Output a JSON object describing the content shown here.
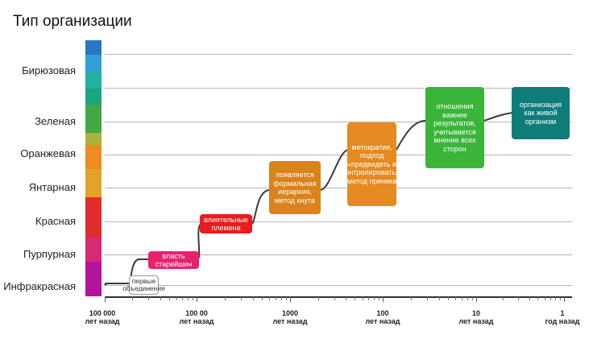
{
  "title": "Тип организации",
  "levels": [
    {
      "label": "Бирюзовая",
      "color": "#2aa7a0"
    },
    {
      "label": "Зеленая",
      "color": "#41a843"
    },
    {
      "label": "Оранжевая",
      "color": "#f08a22"
    },
    {
      "label": "Янтарная",
      "color": "#e5a229"
    },
    {
      "label": "Красная",
      "color": "#e12d2d"
    },
    {
      "label": "Пурпурная",
      "color": "#cc2a8a"
    },
    {
      "label": "Инфракрасная",
      "color": "#b2149b"
    }
  ],
  "x_axis": {
    "ticks": [
      {
        "value": "100 000",
        "unit": "лет назад"
      },
      {
        "value": "100 00",
        "unit": "лет назад"
      },
      {
        "value": "1000",
        "unit": "лет назад"
      },
      {
        "value": "100",
        "unit": "лет назад"
      },
      {
        "value": "10",
        "unit": "лет назад"
      },
      {
        "value": "1",
        "unit": "год назад"
      }
    ]
  },
  "stages": [
    {
      "text": "первые объединения",
      "color": "#ffffff",
      "text_color": "#333333",
      "border": "#999999"
    },
    {
      "text": "власть старейшин",
      "color": "#e8216f",
      "text_color": "#ffffff"
    },
    {
      "text": "влиятельные племена",
      "color": "#e81c1c",
      "text_color": "#ffffff"
    },
    {
      "text": "появляется формальная иерархия, метод кнута",
      "color": "#d9831b",
      "text_color": "#ffffff"
    },
    {
      "text": "метократия, подход «предвидеть и контролировать», метод пряника",
      "color": "#e58a20",
      "text_color": "#ffffff"
    },
    {
      "text": "отношения важнее результатов, учитывается мнение всех сторон",
      "color": "#3ab53a",
      "text_color": "#ffffff"
    },
    {
      "text": "организация как живой организм",
      "color": "#0e7c78",
      "text_color": "#ffffff"
    }
  ]
}
